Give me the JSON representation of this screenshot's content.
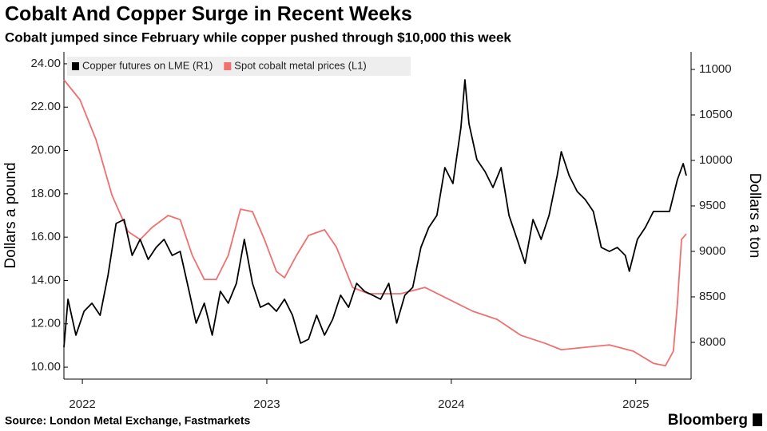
{
  "chart_data": {
    "type": "line",
    "title": "Cobalt And Copper Surge in Recent Weeks",
    "subtitle": "Cobalt jumped since February while copper pushed through $10,000 this week",
    "ylabel": "Dollars a pound",
    "y2label": "Dollars a ton",
    "source": "Source: London Metal Exchange, Fastmarkets",
    "brand": "Bloomberg",
    "legend": "upper left",
    "xlim": [
      2021.9,
      2025.3
    ],
    "xticks": [
      2022,
      2023,
      2024,
      2025
    ],
    "ylim": [
      9.45,
      24.55
    ],
    "yticks": [
      {
        "value": 10,
        "label": "10.00"
      },
      {
        "value": 12,
        "label": "12.00"
      },
      {
        "value": 14,
        "label": "14.00"
      },
      {
        "value": 16,
        "label": "16.00"
      },
      {
        "value": 18,
        "label": "18.00"
      },
      {
        "value": 20,
        "label": "20.00"
      },
      {
        "value": 22,
        "label": "22.00"
      },
      {
        "value": 24,
        "label": "24.00"
      }
    ],
    "y2lim": [
      7596,
      11193
    ],
    "y2ticks": [
      8000,
      8500,
      9000,
      9500,
      10000,
      10500,
      11000
    ],
    "series": [
      {
        "name": "Copper futures on LME (R1)",
        "color": "#000000",
        "axis": "y2",
        "x": [
          2021.9,
          2021.922,
          2021.965,
          2022.009,
          2022.052,
          2022.096,
          2022.139,
          2022.183,
          2022.226,
          2022.27,
          2022.313,
          2022.357,
          2022.4,
          2022.443,
          2022.487,
          2022.53,
          2022.574,
          2022.617,
          2022.661,
          2022.704,
          2022.748,
          2022.791,
          2022.835,
          2022.878,
          2022.922,
          2022.965,
          2023.009,
          2023.052,
          2023.096,
          2023.139,
          2023.183,
          2023.226,
          2023.27,
          2023.313,
          2023.357,
          2023.4,
          2023.443,
          2023.487,
          2023.53,
          2023.574,
          2023.617,
          2023.661,
          2023.704,
          2023.748,
          2023.791,
          2023.835,
          2023.878,
          2023.922,
          2023.965,
          2024.009,
          2024.052,
          2024.074,
          2024.096,
          2024.139,
          2024.183,
          2024.226,
          2024.27,
          2024.313,
          2024.357,
          2024.4,
          2024.443,
          2024.487,
          2024.53,
          2024.574,
          2024.596,
          2024.639,
          2024.683,
          2024.726,
          2024.77,
          2024.813,
          2024.857,
          2024.9,
          2024.943,
          2024.965,
          2025.009,
          2025.052,
          2025.096,
          2025.139,
          2025.183,
          2025.226,
          2025.257,
          2025.274
        ],
        "values": [
          7947,
          8474,
          8079,
          8342,
          8430,
          8298,
          8737,
          9307,
          9351,
          8956,
          9132,
          8912,
          9044,
          9132,
          8956,
          9000,
          8605,
          8211,
          8430,
          8079,
          8561,
          8430,
          8649,
          9132,
          8649,
          8386,
          8430,
          8342,
          8474,
          8298,
          7991,
          8035,
          8298,
          8079,
          8254,
          8518,
          8386,
          8649,
          8561,
          8518,
          8474,
          8649,
          8211,
          8518,
          8605,
          9044,
          9263,
          9395,
          9921,
          9746,
          10360,
          10886,
          10404,
          10009,
          9877,
          9702,
          9921,
          9395,
          9132,
          8868,
          9351,
          9132,
          9395,
          9833,
          10096,
          9833,
          9658,
          9570,
          9439,
          9044,
          9000,
          9044,
          8956,
          8781,
          9132,
          9263,
          9439,
          9439,
          9439,
          9789,
          9965,
          9833
        ]
      },
      {
        "name": "Spot cobalt metal prices (L1)",
        "color": "#f07070",
        "x": [
          2021.9,
          2021.987,
          2022.074,
          2022.161,
          2022.248,
          2022.313,
          2022.378,
          2022.465,
          2022.53,
          2022.596,
          2022.661,
          2022.726,
          2022.791,
          2022.857,
          2022.922,
          2022.987,
          2023.052,
          2023.096,
          2023.161,
          2023.226,
          2023.313,
          2023.378,
          2023.465,
          2023.552,
          2023.726,
          2023.857,
          2023.987,
          2024.117,
          2024.248,
          2024.378,
          2024.509,
          2024.596,
          2024.726,
          2024.857,
          2024.987,
          2025.096,
          2025.161,
          2025.204,
          2025.226,
          2025.248,
          2025.274
        ],
        "values": [
          23.26,
          22.34,
          20.5,
          17.92,
          16.26,
          15.89,
          16.45,
          17.0,
          16.81,
          15.16,
          14.05,
          14.05,
          15.16,
          17.29,
          17.18,
          15.89,
          14.42,
          14.13,
          15.16,
          16.08,
          16.34,
          15.53,
          13.68,
          13.39,
          13.39,
          13.68,
          13.13,
          12.58,
          12.21,
          11.47,
          11.1,
          10.81,
          10.92,
          11.03,
          10.74,
          10.18,
          10.07,
          10.74,
          12.95,
          15.89,
          16.15
        ]
      }
    ]
  }
}
